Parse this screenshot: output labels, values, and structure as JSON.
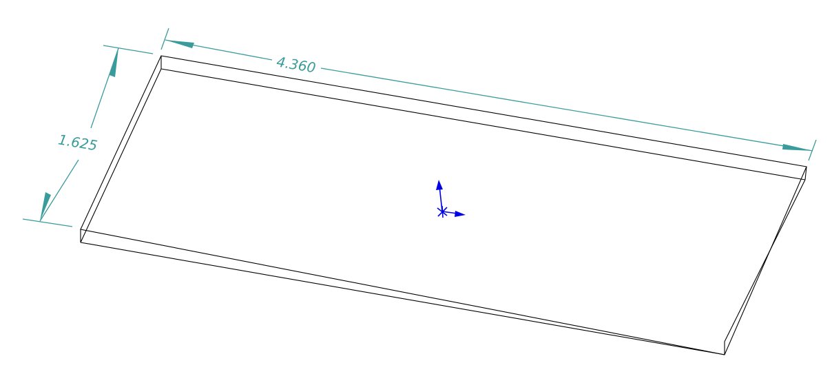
{
  "colors": {
    "background": "#ffffff",
    "model_edges": "#000000",
    "dimension": "#3a9b9b",
    "triad": "#0000e6"
  },
  "model": {
    "name": "plate",
    "view": "isometric"
  },
  "dimensions": {
    "length": {
      "label": "4.360",
      "value": 4.36
    },
    "width": {
      "label": "1.625",
      "value": 1.625
    }
  },
  "icons": {
    "origin_triad": "reference-triad-icon"
  }
}
